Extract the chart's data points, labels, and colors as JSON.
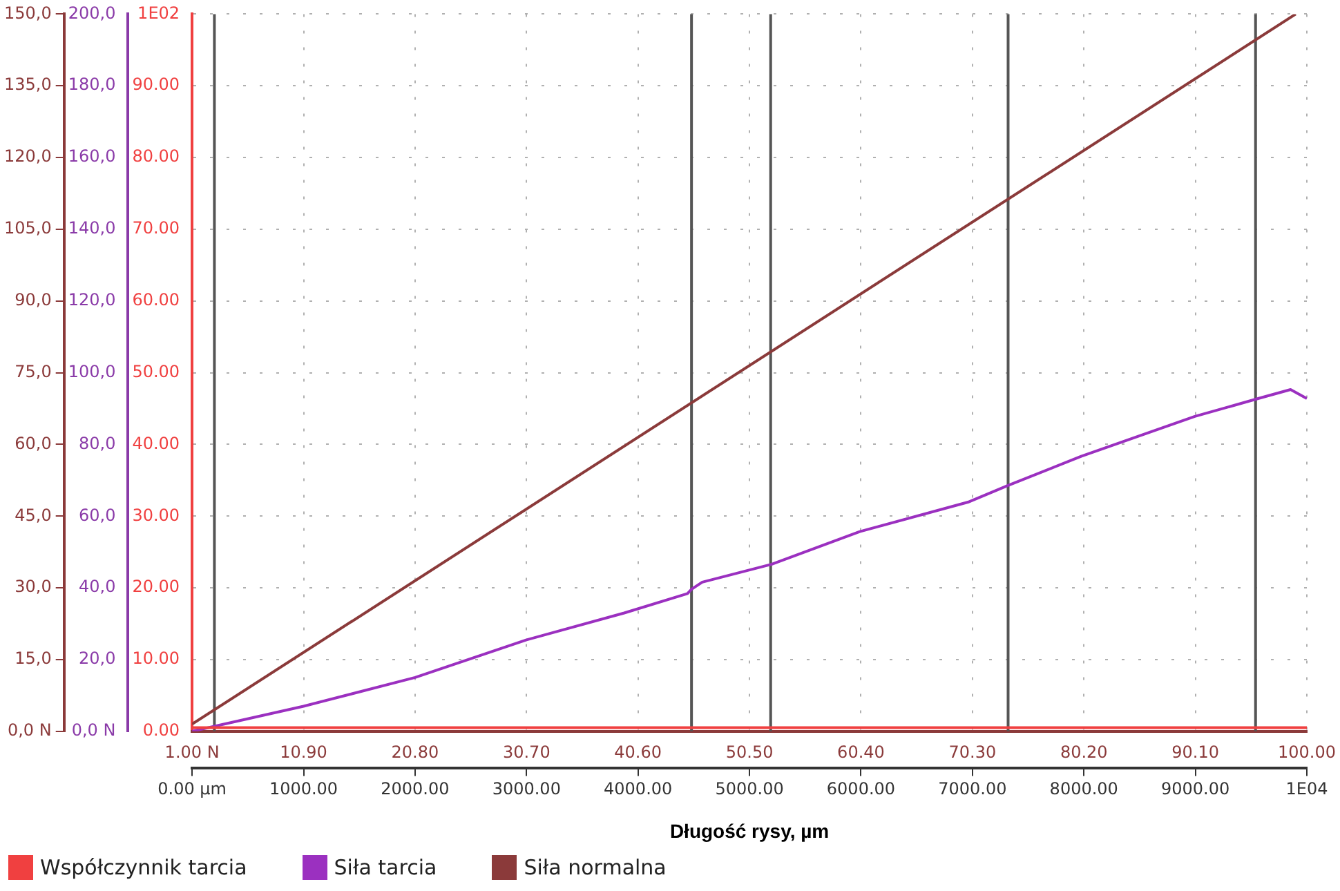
{
  "chart_data": {
    "type": "line",
    "xlabel": "Długość rysy, µm",
    "xlim": [
      0,
      10000
    ],
    "xticks": [
      {
        "value": 0,
        "label": "0.00 µm"
      },
      {
        "value": 1000,
        "label": "1000.00"
      },
      {
        "value": 2000,
        "label": "2000.00"
      },
      {
        "value": 3000,
        "label": "3000.00"
      },
      {
        "value": 4000,
        "label": "4000.00"
      },
      {
        "value": 5000,
        "label": "5000.00"
      },
      {
        "value": 6000,
        "label": "6000.00"
      },
      {
        "value": 7000,
        "label": "7000.00"
      },
      {
        "value": 8000,
        "label": "8000.00"
      },
      {
        "value": 9000,
        "label": "9000.00"
      },
      {
        "value": 10000,
        "label": "1E04"
      }
    ],
    "x2lim": [
      1,
      100
    ],
    "x2ticks": [
      {
        "value": 1,
        "label": "1.00 N"
      },
      {
        "value": 10.9,
        "label": "10.90"
      },
      {
        "value": 20.8,
        "label": "20.80"
      },
      {
        "value": 30.7,
        "label": "30.70"
      },
      {
        "value": 40.6,
        "label": "40.60"
      },
      {
        "value": 50.5,
        "label": "50.50"
      },
      {
        "value": 60.4,
        "label": "60.40"
      },
      {
        "value": 70.3,
        "label": "70.30"
      },
      {
        "value": 80.2,
        "label": "80.20"
      },
      {
        "value": 90.1,
        "label": "90.10"
      },
      {
        "value": 100,
        "label": "100.00"
      }
    ],
    "ylim": [
      0,
      150
    ],
    "yticks": [
      {
        "value": 0,
        "label": "0,0 N"
      },
      {
        "value": 15,
        "label": "15,0"
      },
      {
        "value": 30,
        "label": "30,0"
      },
      {
        "value": 45,
        "label": "45,0"
      },
      {
        "value": 60,
        "label": "60,0"
      },
      {
        "value": 75,
        "label": "75,0"
      },
      {
        "value": 90,
        "label": "90,0"
      },
      {
        "value": 105,
        "label": "105,0"
      },
      {
        "value": 120,
        "label": "120,0"
      },
      {
        "value": 135,
        "label": "135,0"
      },
      {
        "value": 150,
        "label": "150,0"
      }
    ],
    "y2lim": [
      0,
      200
    ],
    "y2ticks": [
      {
        "value": 0,
        "label": "0,0 N"
      },
      {
        "value": 20,
        "label": "20,0"
      },
      {
        "value": 40,
        "label": "40,0"
      },
      {
        "value": 60,
        "label": "60,0"
      },
      {
        "value": 80,
        "label": "80,0"
      },
      {
        "value": 100,
        "label": "100,0"
      },
      {
        "value": 120,
        "label": "120,0"
      },
      {
        "value": 140,
        "label": "140,0"
      },
      {
        "value": 160,
        "label": "160,0"
      },
      {
        "value": 180,
        "label": "180,0"
      },
      {
        "value": 200,
        "label": "200,0"
      }
    ],
    "y3lim": [
      0,
      100
    ],
    "y3ticks": [
      {
        "value": 0,
        "label": "0.00"
      },
      {
        "value": 10,
        "label": "10.00"
      },
      {
        "value": 20,
        "label": "20.00"
      },
      {
        "value": 30,
        "label": "30.00"
      },
      {
        "value": 40,
        "label": "40.00"
      },
      {
        "value": 50,
        "label": "50.00"
      },
      {
        "value": 60,
        "label": "60.00"
      },
      {
        "value": 70,
        "label": "70.00"
      },
      {
        "value": 80,
        "label": "80.00"
      },
      {
        "value": 90,
        "label": "90.00"
      },
      {
        "value": 100,
        "label": "1E02"
      }
    ],
    "series": [
      {
        "name": "Współczynnik tarcia",
        "color": "#f04040",
        "axis": "y3",
        "x": [
          0,
          10000
        ],
        "values": [
          0.5,
          0.5
        ]
      },
      {
        "name": "Siła tarcia",
        "color": "#9b30c0",
        "axis": "y2",
        "x": [
          0,
          1000,
          2000,
          3000,
          3876,
          4444,
          4480,
          4576,
          5200,
          5990,
          6960,
          7315,
          7976,
          8995,
          9563,
          9854,
          10000
        ],
        "values": [
          0,
          7,
          15,
          25.5,
          33,
          38.4,
          39.6,
          41.6,
          46.6,
          55.7,
          63.9,
          68.5,
          76.7,
          87.8,
          92.8,
          95.3,
          92.8
        ]
      },
      {
        "name": "Siła normalna",
        "color": "#8b3a3a",
        "axis": "y3",
        "x": [
          0,
          9900
        ],
        "values": [
          1,
          100
        ]
      }
    ],
    "ref_lines": [
      {
        "axis": "x",
        "value": 200,
        "color": "#555555"
      },
      {
        "axis": "x",
        "value": 4480,
        "color": "#555555"
      },
      {
        "axis": "x",
        "value": 5190,
        "color": "#555555"
      },
      {
        "axis": "x",
        "value": 7320,
        "color": "#555555"
      },
      {
        "axis": "x",
        "value": 9540,
        "color": "#555555"
      }
    ],
    "grid": true,
    "legend": "bottom left",
    "marker": "none"
  }
}
